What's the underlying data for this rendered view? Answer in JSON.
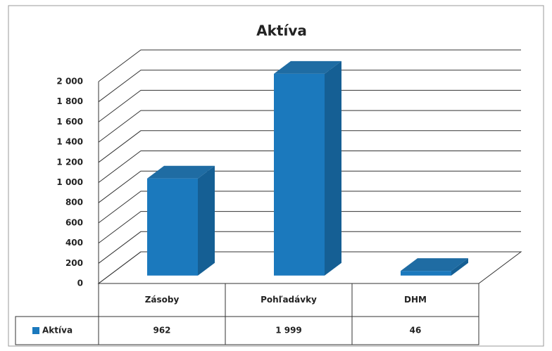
{
  "chart_data": {
    "type": "bar3d",
    "title": "Aktíva",
    "categories": [
      "Zásoby",
      "Pohľadávky",
      "DHM"
    ],
    "series": [
      {
        "name": "Aktíva",
        "color": "#1b79bd",
        "values": [
          962,
          1999,
          46
        ],
        "value_labels": [
          "962",
          "1 999",
          "46"
        ]
      }
    ],
    "ylim": [
      0,
      2000
    ],
    "yticks": [
      0,
      200,
      400,
      600,
      800,
      {
        "value": 1000,
        "label": "1 000"
      },
      {
        "value": 1200,
        "label": "1 200"
      },
      {
        "value": 1400,
        "label": "1 400"
      },
      {
        "value": 1600,
        "label": "1 600"
      },
      {
        "value": 1800,
        "label": "1 800"
      },
      {
        "value": 2000,
        "label": "2 000"
      }
    ],
    "grid": true,
    "data_table": true
  }
}
